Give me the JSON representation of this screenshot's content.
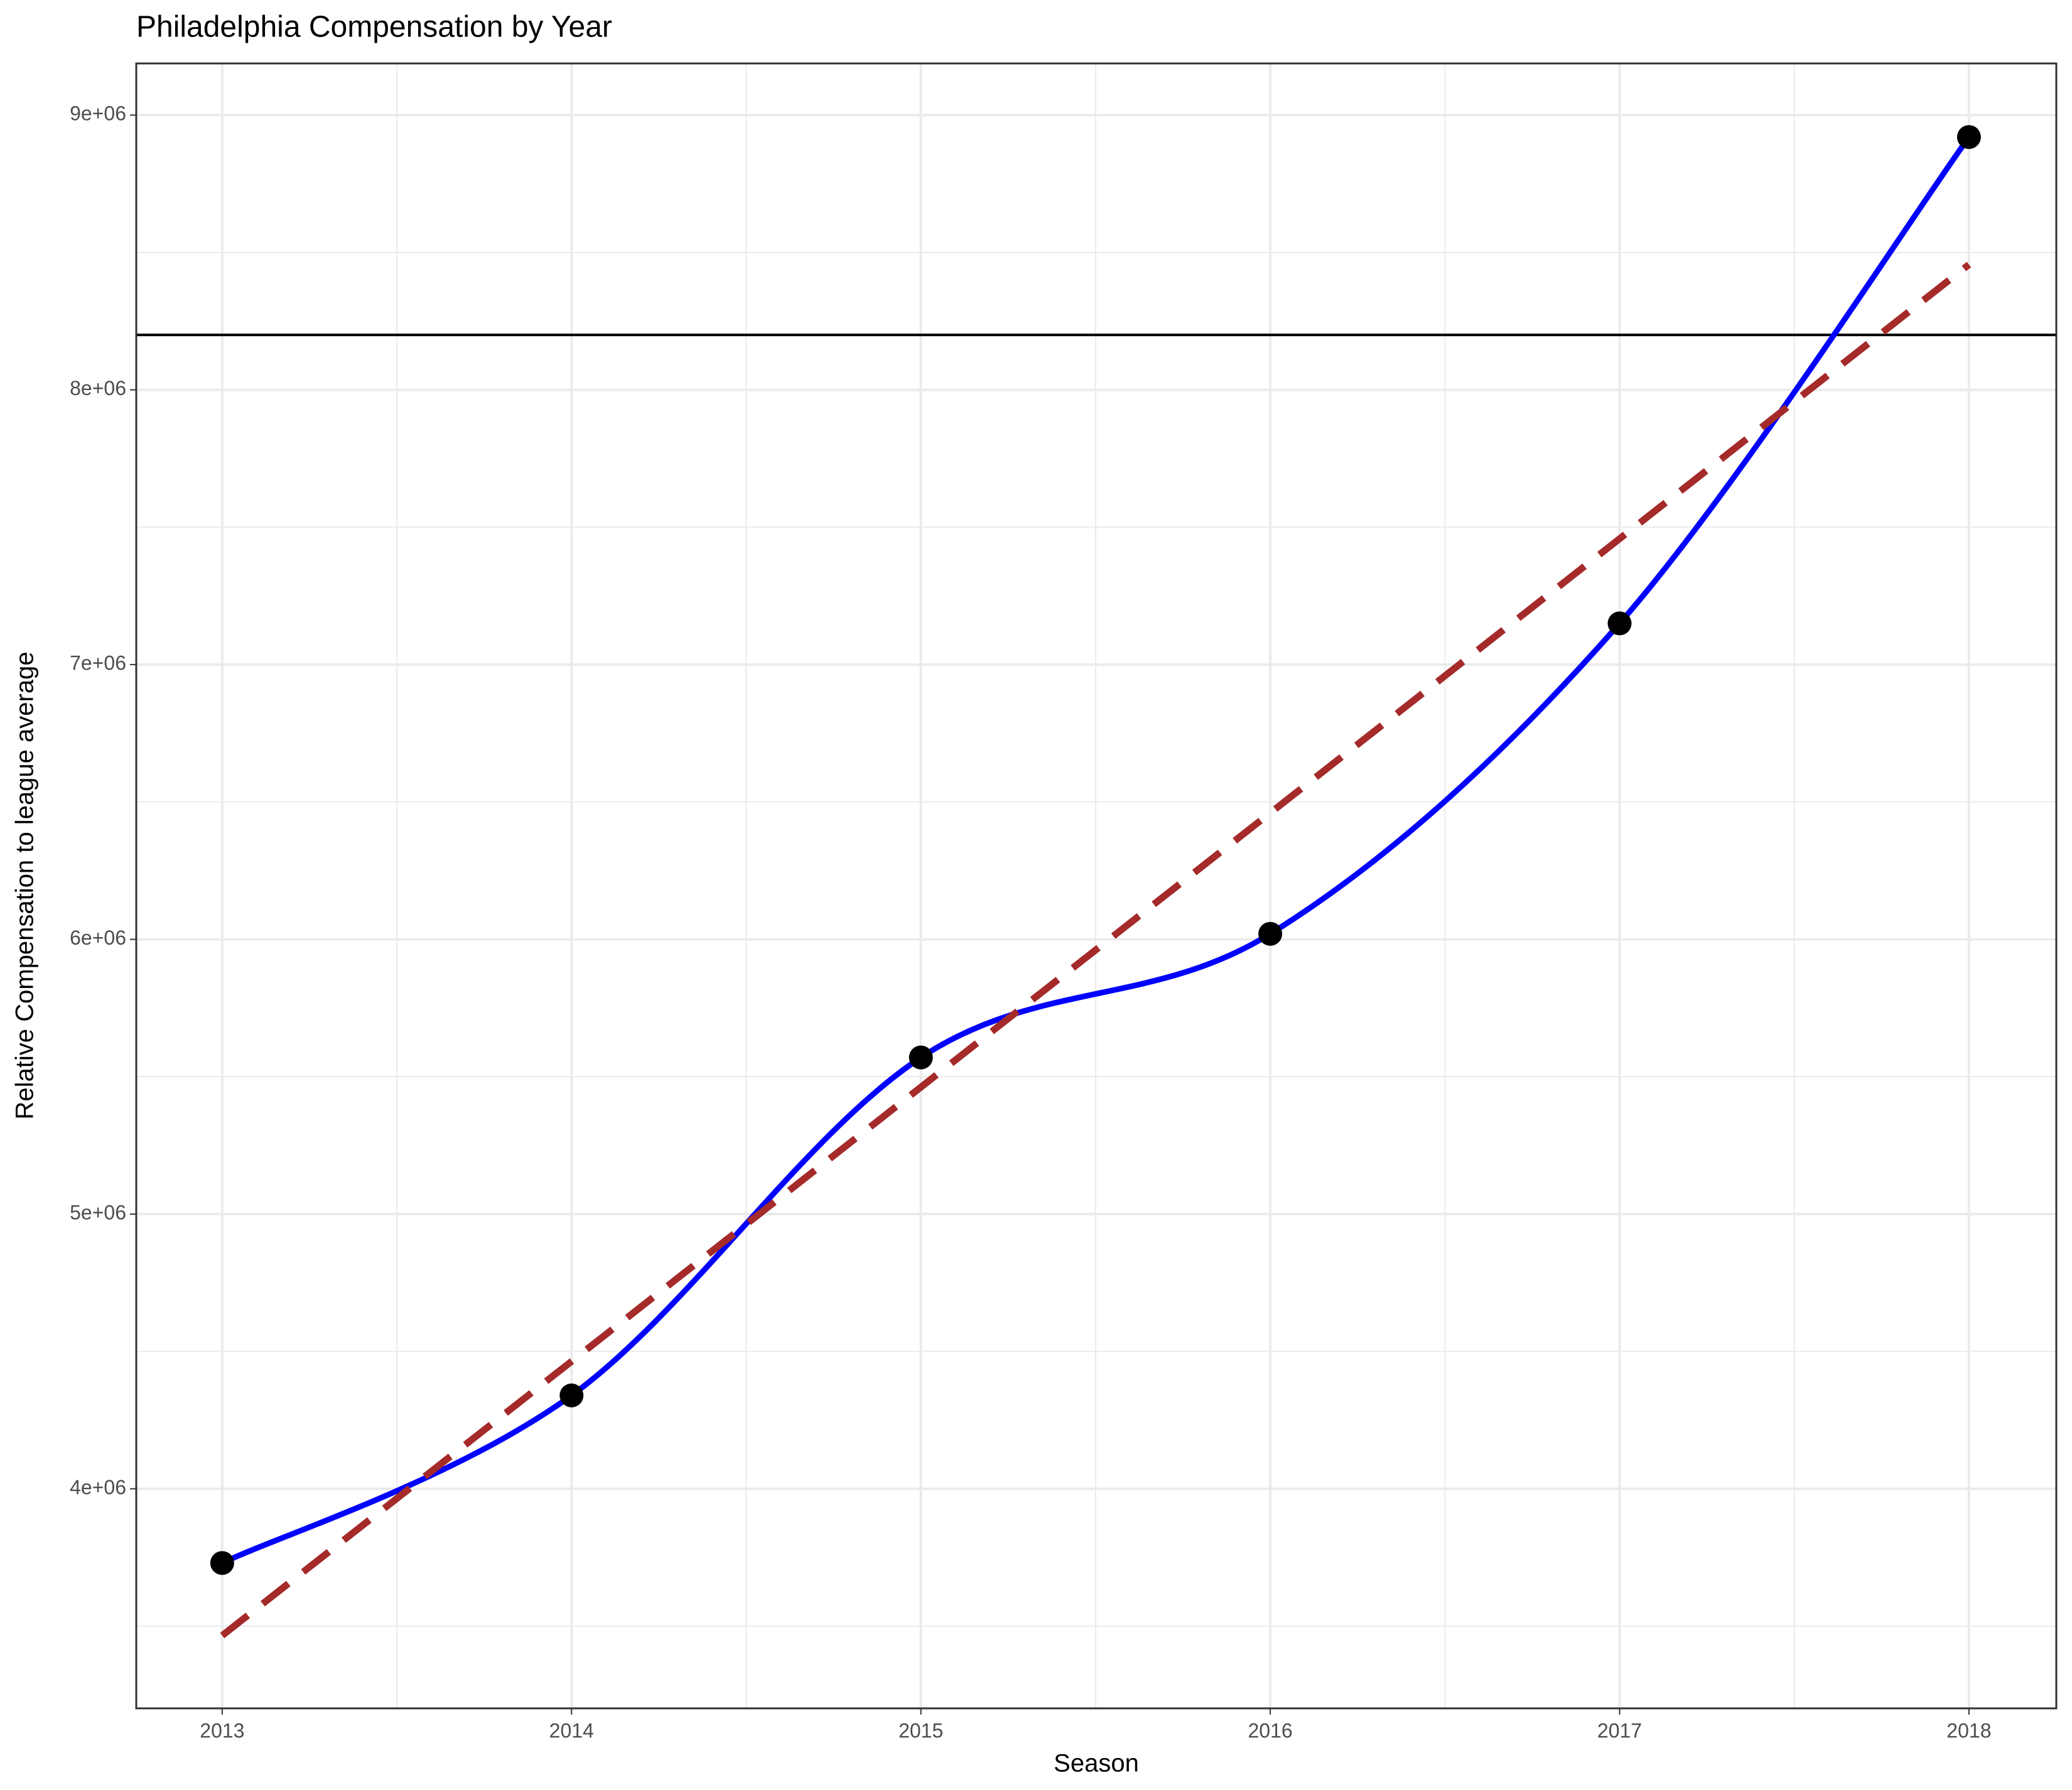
{
  "chart_data": {
    "type": "line",
    "title": "Philadelphia Compensation by Year",
    "x_label": "Season",
    "y_label": "Relative Compensation to league average",
    "x": [
      2013,
      2014,
      2015,
      2016,
      2017,
      2018
    ],
    "series": [
      {
        "color": "#0000ff",
        "point_color": "#000000",
        "values": [
          3730000,
          4340000,
          5570000,
          6020000,
          7150000,
          8920000
        ]
      }
    ],
    "trend": {
      "x": [
        2013,
        2018
      ],
      "values": [
        3466000,
        8456000
      ],
      "color": "#a52a2a"
    },
    "hline": {
      "value": 8200000,
      "color": "#000000"
    },
    "xlim": [
      2012.754,
      2018.25
    ],
    "ylim": [
      3201000,
      9188000
    ],
    "xticks": [
      2013,
      2014,
      2015,
      2016,
      2017,
      2018
    ],
    "x_minor_ticks": [
      2013.5,
      2014.5,
      2015.5,
      2016.5,
      2017.5
    ],
    "yticks": [
      {
        "value": 4000000,
        "label": "4e+06"
      },
      {
        "value": 5000000,
        "label": "5e+06"
      },
      {
        "value": 6000000,
        "label": "6e+06"
      },
      {
        "value": 7000000,
        "label": "7e+06"
      },
      {
        "value": 8000000,
        "label": "8e+06"
      },
      {
        "value": 9000000,
        "label": "9e+06"
      }
    ],
    "y_minor_ticks": [
      3500000,
      4500000,
      5500000,
      6500000,
      7500000,
      8500000
    ],
    "grid": true
  }
}
